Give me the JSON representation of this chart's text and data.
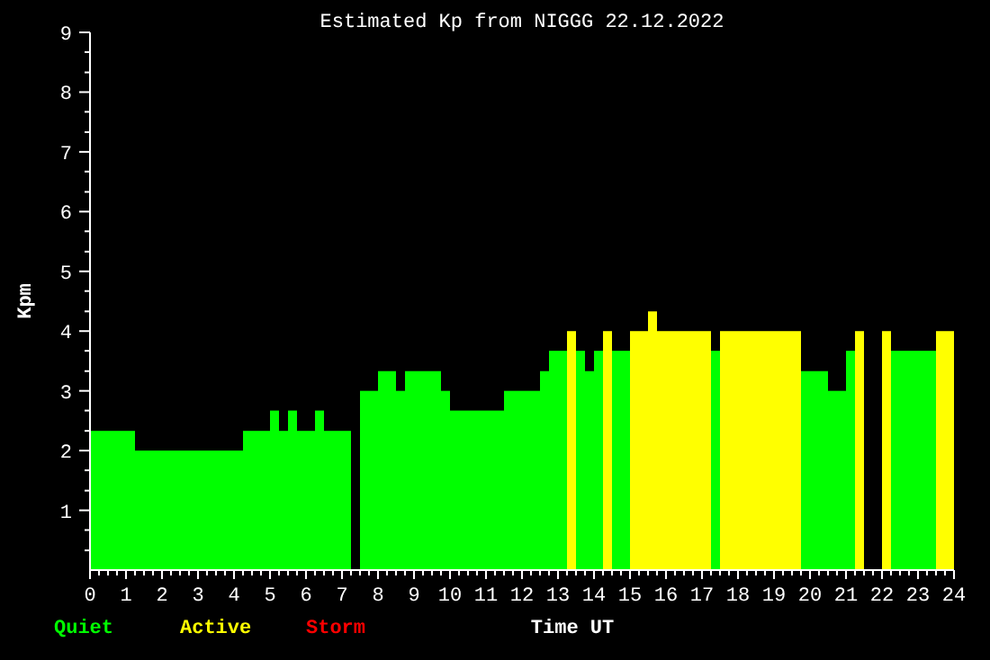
{
  "chart_data": {
    "type": "histogram",
    "title": "Estimated Kp from NIGGG 22.12.2022",
    "xlabel": "Time UT",
    "ylabel": "Kpm",
    "bins": [
      0,
      1.25,
      4.25,
      5,
      5.25,
      5.5,
      5.75,
      6.25,
      6.5,
      7.25,
      7.5,
      8,
      8.5,
      8.75,
      9.75,
      10,
      11.5,
      12.5,
      12.75,
      13.25,
      13.5,
      13.75,
      14,
      14.25,
      14.5,
      15,
      15.5,
      15.75,
      17.25,
      17.5,
      19.75,
      20.5,
      21,
      21.25,
      21.5,
      22,
      22.25,
      23.5,
      24
    ],
    "series": [
      {
        "name": "Quiet",
        "color": "#00ff00",
        "values": [
          2.33,
          2,
          2.33,
          2.67,
          2.33,
          2.67,
          2.33,
          2.67,
          2.33,
          null,
          3,
          3.33,
          3,
          3.33,
          3,
          2.67,
          3,
          3.33,
          3.67,
          null,
          3.67,
          3.33,
          3.67,
          null,
          3.67,
          null,
          null,
          null,
          3.67,
          null,
          3.33,
          3,
          3.67,
          null,
          null,
          null,
          3.67,
          null
        ]
      },
      {
        "name": "Active",
        "color": "#ffff00",
        "values": [
          null,
          null,
          null,
          null,
          null,
          null,
          null,
          null,
          null,
          null,
          null,
          null,
          null,
          null,
          null,
          null,
          null,
          null,
          null,
          4,
          null,
          null,
          null,
          4,
          null,
          4,
          4.33,
          4,
          null,
          4,
          null,
          null,
          null,
          4,
          null,
          4,
          null,
          4
        ]
      }
    ],
    "annotations": [
      "Storm"
    ],
    "xlim": [
      0,
      24
    ],
    "xticks": [
      0,
      {
        "value": 0.25,
        "label": null
      },
      {
        "value": 0.5,
        "label": null
      },
      {
        "value": 0.75,
        "label": null
      },
      1,
      {
        "value": 1.25,
        "label": null
      },
      {
        "value": 1.5,
        "label": null
      },
      {
        "value": 1.75,
        "label": null
      },
      2,
      {
        "value": 2.25,
        "label": null
      },
      {
        "value": 2.5,
        "label": null
      },
      {
        "value": 2.75,
        "label": null
      },
      3,
      {
        "value": 3.25,
        "label": null
      },
      {
        "value": 3.5,
        "label": null
      },
      {
        "value": 3.75,
        "label": null
      },
      4,
      {
        "value": 4.25,
        "label": null
      },
      {
        "value": 4.5,
        "label": null
      },
      {
        "value": 4.75,
        "label": null
      },
      5,
      {
        "value": 5.25,
        "label": null
      },
      {
        "value": 5.5,
        "label": null
      },
      {
        "value": 5.75,
        "label": null
      },
      6,
      {
        "value": 6.25,
        "label": null
      },
      {
        "value": 6.5,
        "label": null
      },
      {
        "value": 6.75,
        "label": null
      },
      7,
      {
        "value": 7.25,
        "label": null
      },
      {
        "value": 7.5,
        "label": null
      },
      {
        "value": 7.75,
        "label": null
      },
      8,
      {
        "value": 8.25,
        "label": null
      },
      {
        "value": 8.5,
        "label": null
      },
      {
        "value": 8.75,
        "label": null
      },
      9,
      {
        "value": 9.25,
        "label": null
      },
      {
        "value": 9.5,
        "label": null
      },
      {
        "value": 9.75,
        "label": null
      },
      10,
      {
        "value": 10.25,
        "label": null
      },
      {
        "value": 10.5,
        "label": null
      },
      {
        "value": 10.75,
        "label": null
      },
      11,
      {
        "value": 11.25,
        "label": null
      },
      {
        "value": 11.5,
        "label": null
      },
      {
        "value": 11.75,
        "label": null
      },
      12,
      {
        "value": 12.25,
        "label": null
      },
      {
        "value": 12.5,
        "label": null
      },
      {
        "value": 12.75,
        "label": null
      },
      13,
      {
        "value": 13.25,
        "label": null
      },
      {
        "value": 13.5,
        "label": null
      },
      {
        "value": 13.75,
        "label": null
      },
      14,
      {
        "value": 14.25,
        "label": null
      },
      {
        "value": 14.5,
        "label": null
      },
      {
        "value": 14.75,
        "label": null
      },
      15,
      {
        "value": 15.25,
        "label": null
      },
      {
        "value": 15.5,
        "label": null
      },
      {
        "value": 15.75,
        "label": null
      },
      16,
      {
        "value": 16.25,
        "label": null
      },
      {
        "value": 16.5,
        "label": null
      },
      {
        "value": 16.75,
        "label": null
      },
      17,
      {
        "value": 17.25,
        "label": null
      },
      {
        "value": 17.5,
        "label": null
      },
      {
        "value": 17.75,
        "label": null
      },
      18,
      {
        "value": 18.25,
        "label": null
      },
      {
        "value": 18.5,
        "label": null
      },
      {
        "value": 18.75,
        "label": null
      },
      19,
      {
        "value": 19.25,
        "label": null
      },
      {
        "value": 19.5,
        "label": null
      },
      {
        "value": 19.75,
        "label": null
      },
      20,
      {
        "value": 20.25,
        "label": null
      },
      {
        "value": 20.5,
        "label": null
      },
      {
        "value": 20.75,
        "label": null
      },
      21,
      {
        "value": 21.25,
        "label": null
      },
      {
        "value": 21.5,
        "label": null
      },
      {
        "value": 21.75,
        "label": null
      },
      22,
      {
        "value": 22.25,
        "label": null
      },
      {
        "value": 22.5,
        "label": null
      },
      {
        "value": 22.75,
        "label": null
      },
      23,
      {
        "value": 23.25,
        "label": null
      },
      {
        "value": 23.5,
        "label": null
      },
      {
        "value": 23.75,
        "label": null
      },
      24
    ],
    "ylim": [
      0,
      9
    ],
    "yticks": [
      {
        "value": 0.33,
        "label": null
      },
      {
        "value": 0.67,
        "label": null
      },
      1,
      {
        "value": 1.33,
        "label": null
      },
      {
        "value": 1.67,
        "label": null
      },
      2,
      {
        "value": 2.33,
        "label": null
      },
      {
        "value": 2.67,
        "label": null
      },
      3,
      {
        "value": 3.33,
        "label": null
      },
      {
        "value": 3.67,
        "label": null
      },
      4,
      {
        "value": 4.33,
        "label": null
      },
      {
        "value": 4.67,
        "label": null
      },
      5,
      {
        "value": 5.33,
        "label": null
      },
      {
        "value": 5.67,
        "label": null
      },
      6,
      {
        "value": 6.33,
        "label": null
      },
      {
        "value": 6.67,
        "label": null
      },
      7,
      {
        "value": 7.33,
        "label": null
      },
      {
        "value": 7.67,
        "label": null
      },
      8,
      {
        "value": 8.33,
        "label": null
      },
      {
        "value": 8.67,
        "label": null
      },
      9
    ],
    "legend": "bottom left"
  }
}
